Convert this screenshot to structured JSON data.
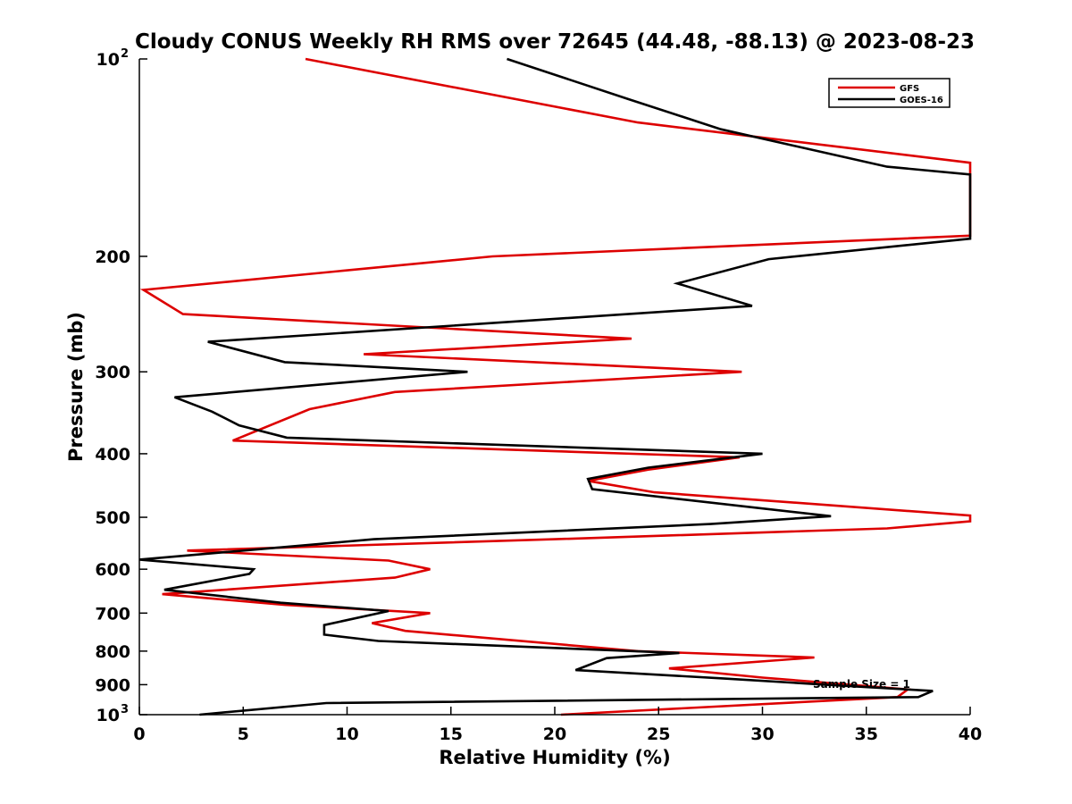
{
  "chart_data": {
    "type": "line",
    "title": "Cloudy CONUS Weekly RH RMS over 72645 (44.48, -88.13) @ 2023-08-23",
    "xlabel": "Relative Humidity (%)",
    "ylabel": "Pressure (mb)",
    "xlim": [
      0,
      40
    ],
    "ylim": [
      100,
      1000
    ],
    "y_scale": "log",
    "y_reversed": true,
    "grid": false,
    "legend_position": "top-right",
    "x_ticks": [
      "0",
      "5",
      "10",
      "15",
      "20",
      "25",
      "30",
      "35",
      "40"
    ],
    "x_tick_values": [
      0,
      5,
      10,
      15,
      20,
      25,
      30,
      35,
      40
    ],
    "y_ticks": [
      {
        "value": 100,
        "label": "10",
        "exp": "2"
      },
      {
        "value": 200,
        "label": "200",
        "exp": ""
      },
      {
        "value": 300,
        "label": "300",
        "exp": ""
      },
      {
        "value": 400,
        "label": "400",
        "exp": ""
      },
      {
        "value": 500,
        "label": "500",
        "exp": ""
      },
      {
        "value": 600,
        "label": "600",
        "exp": ""
      },
      {
        "value": 700,
        "label": "700",
        "exp": ""
      },
      {
        "value": 800,
        "label": "800",
        "exp": ""
      },
      {
        "value": 900,
        "label": "900",
        "exp": ""
      },
      {
        "value": 1000,
        "label": "10",
        "exp": "3"
      }
    ],
    "annotation": "Sample Size = 1",
    "series": [
      {
        "name": "GFS",
        "color": "#dd0000",
        "points": [
          [
            8.0,
            100
          ],
          [
            24.0,
            125
          ],
          [
            40.0,
            144
          ],
          [
            40.0,
            186
          ],
          [
            17.0,
            200
          ],
          [
            0.2,
            225
          ],
          [
            2.1,
            245
          ],
          [
            23.7,
            267
          ],
          [
            10.8,
            282
          ],
          [
            29.0,
            300
          ],
          [
            12.3,
            322
          ],
          [
            8.2,
            342
          ],
          [
            4.5,
            382
          ],
          [
            28.9,
            405
          ],
          [
            24.5,
            423
          ],
          [
            21.6,
            440
          ],
          [
            24.8,
            458
          ],
          [
            40.0,
            497
          ],
          [
            40.0,
            507
          ],
          [
            36.0,
            520
          ],
          [
            20.0,
            540
          ],
          [
            2.3,
            562
          ],
          [
            12.0,
            582
          ],
          [
            14.0,
            600
          ],
          [
            12.3,
            618
          ],
          [
            1.1,
            655
          ],
          [
            7.0,
            680
          ],
          [
            14.0,
            700
          ],
          [
            11.2,
            725
          ],
          [
            12.8,
            745
          ],
          [
            24.0,
            800
          ],
          [
            32.5,
            818
          ],
          [
            25.5,
            850
          ],
          [
            30.0,
            878
          ],
          [
            37.0,
            915
          ],
          [
            36.5,
            940
          ],
          [
            20.3,
            1000
          ]
        ]
      },
      {
        "name": "GOES-16",
        "color": "#000000",
        "points": [
          [
            17.7,
            100
          ],
          [
            23.5,
            115
          ],
          [
            28.0,
            128
          ],
          [
            36.0,
            146
          ],
          [
            40.0,
            150
          ],
          [
            40.0,
            188
          ],
          [
            30.3,
            202
          ],
          [
            25.9,
            220
          ],
          [
            29.5,
            238
          ],
          [
            3.3,
            270
          ],
          [
            7.0,
            290
          ],
          [
            15.8,
            300
          ],
          [
            1.7,
            328
          ],
          [
            3.5,
            345
          ],
          [
            4.8,
            362
          ],
          [
            7.1,
            378
          ],
          [
            30.0,
            400
          ],
          [
            24.5,
            420
          ],
          [
            21.6,
            437
          ],
          [
            21.8,
            453
          ],
          [
            33.3,
            498
          ],
          [
            27.5,
            512
          ],
          [
            11.3,
            540
          ],
          [
            0.0,
            580
          ],
          [
            5.5,
            600
          ],
          [
            5.3,
            610
          ],
          [
            1.2,
            645
          ],
          [
            6.8,
            675
          ],
          [
            12.0,
            695
          ],
          [
            8.9,
            730
          ],
          [
            8.9,
            755
          ],
          [
            11.5,
            772
          ],
          [
            26.0,
            805
          ],
          [
            22.5,
            820
          ],
          [
            21.0,
            855
          ],
          [
            28.0,
            880
          ],
          [
            33.0,
            900
          ],
          [
            38.2,
            920
          ],
          [
            37.5,
            940
          ],
          [
            9.0,
            960
          ],
          [
            2.9,
            1000
          ]
        ]
      }
    ]
  }
}
